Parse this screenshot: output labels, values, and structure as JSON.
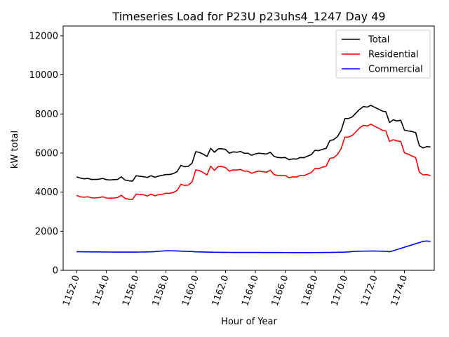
{
  "chart_data": {
    "type": "line",
    "title": "Timeseries Load for P23U p23uhs4_1247  Day 49",
    "xlabel": "Hour of Year",
    "ylabel": "kW total",
    "xlim": [
      1151.1,
      1176.0
    ],
    "ylim": [
      0,
      12500
    ],
    "xticks": [
      1152,
      1154,
      1156,
      1158,
      1160,
      1162,
      1164,
      1166,
      1168,
      1170,
      1172,
      1174
    ],
    "xtick_labels": [
      "1152.0",
      "1154.0",
      "1156.0",
      "1158.0",
      "1160.0",
      "1162.0",
      "1164.0",
      "1166.0",
      "1168.0",
      "1170.0",
      "1172.0",
      "1174.0"
    ],
    "yticks": [
      0,
      2000,
      4000,
      6000,
      8000,
      10000,
      12000
    ],
    "ytick_labels": [
      "0",
      "2000",
      "4000",
      "6000",
      "8000",
      "10000",
      "12000"
    ],
    "legend_position": "top-right",
    "x": [
      1152.0,
      1152.25,
      1152.5,
      1152.75,
      1153.0,
      1153.25,
      1153.5,
      1153.75,
      1154.0,
      1154.25,
      1154.5,
      1154.75,
      1155.0,
      1155.25,
      1155.5,
      1155.75,
      1156.0,
      1156.25,
      1156.5,
      1156.75,
      1157.0,
      1157.25,
      1157.5,
      1157.75,
      1158.0,
      1158.25,
      1158.5,
      1158.75,
      1159.0,
      1159.25,
      1159.5,
      1159.75,
      1160.0,
      1160.25,
      1160.5,
      1160.75,
      1161.0,
      1161.25,
      1161.5,
      1161.75,
      1162.0,
      1162.25,
      1162.5,
      1162.75,
      1163.0,
      1163.25,
      1163.5,
      1163.75,
      1164.0,
      1164.25,
      1164.5,
      1164.75,
      1165.0,
      1165.25,
      1165.5,
      1165.75,
      1166.0,
      1166.25,
      1166.5,
      1166.75,
      1167.0,
      1167.25,
      1167.5,
      1167.75,
      1168.0,
      1168.25,
      1168.5,
      1168.75,
      1169.0,
      1169.25,
      1169.5,
      1169.75,
      1170.0,
      1170.25,
      1170.5,
      1170.75,
      1171.0,
      1171.25,
      1171.5,
      1171.75,
      1172.0,
      1172.25,
      1172.5,
      1172.75,
      1173.0,
      1173.25,
      1173.5,
      1173.75,
      1174.0,
      1174.25,
      1174.5,
      1174.75,
      1175.0,
      1175.25,
      1175.5,
      1175.75
    ],
    "series": [
      {
        "name": "Total",
        "color": "#000000",
        "values": [
          4780,
          4720,
          4680,
          4700,
          4650,
          4650,
          4660,
          4700,
          4640,
          4620,
          4640,
          4650,
          4780,
          4620,
          4580,
          4560,
          4840,
          4810,
          4790,
          4750,
          4840,
          4760,
          4820,
          4860,
          4900,
          4900,
          4950,
          5050,
          5370,
          5300,
          5320,
          5480,
          6070,
          6030,
          5940,
          5820,
          6240,
          6040,
          6210,
          6220,
          6180,
          5990,
          6060,
          6040,
          6080,
          5990,
          5990,
          5880,
          5960,
          5990,
          5970,
          5950,
          6040,
          5830,
          5770,
          5760,
          5770,
          5660,
          5700,
          5690,
          5770,
          5760,
          5840,
          5920,
          6140,
          6120,
          6190,
          6240,
          6640,
          6680,
          6840,
          7150,
          7760,
          7770,
          7850,
          8050,
          8240,
          8380,
          8350,
          8440,
          8340,
          8250,
          8150,
          8110,
          7560,
          7700,
          7640,
          7680,
          7170,
          7130,
          7100,
          7050,
          6370,
          6260,
          6330,
          6310
        ]
      },
      {
        "name": "Residential",
        "color": "#ff0000",
        "values": [
          3830,
          3760,
          3740,
          3760,
          3710,
          3700,
          3720,
          3760,
          3700,
          3690,
          3700,
          3720,
          3840,
          3680,
          3640,
          3620,
          3900,
          3880,
          3860,
          3800,
          3900,
          3810,
          3870,
          3890,
          3940,
          3940,
          3980,
          4090,
          4400,
          4340,
          4360,
          4520,
          5140,
          5100,
          5000,
          4880,
          5330,
          5110,
          5310,
          5310,
          5250,
          5070,
          5140,
          5130,
          5160,
          5070,
          5070,
          4960,
          5040,
          5070,
          5050,
          5020,
          5120,
          4900,
          4850,
          4840,
          4850,
          4740,
          4780,
          4770,
          4850,
          4840,
          4920,
          5000,
          5210,
          5200,
          5280,
          5330,
          5730,
          5760,
          5920,
          6220,
          6810,
          6820,
          6900,
          7090,
          7290,
          7420,
          7380,
          7480,
          7370,
          7280,
          7170,
          7130,
          6590,
          6680,
          6620,
          6590,
          6010,
          5940,
          5850,
          5770,
          5020,
          4880,
          4900,
          4840
        ]
      },
      {
        "name": "Commercial",
        "color": "#0000ff",
        "values": [
          950,
          950,
          945,
          945,
          942,
          940,
          940,
          938,
          936,
          934,
          932,
          930,
          930,
          930,
          930,
          930,
          932,
          934,
          936,
          940,
          945,
          955,
          970,
          985,
          1000,
          1000,
          995,
          990,
          980,
          972,
          965,
          958,
          945,
          940,
          936,
          932,
          928,
          925,
          922,
          920,
          918,
          916,
          915,
          915,
          915,
          914,
          914,
          913,
          912,
          912,
          911,
          910,
          910,
          909,
          908,
          908,
          907,
          907,
          906,
          906,
          906,
          906,
          906,
          906,
          907,
          908,
          910,
          912,
          915,
          918,
          922,
          926,
          930,
          940,
          960,
          970,
          975,
          980,
          982,
          985,
          985,
          982,
          978,
          970,
          950,
          1000,
          1060,
          1120,
          1180,
          1240,
          1300,
          1360,
          1420,
          1480,
          1500,
          1480
        ]
      }
    ]
  }
}
